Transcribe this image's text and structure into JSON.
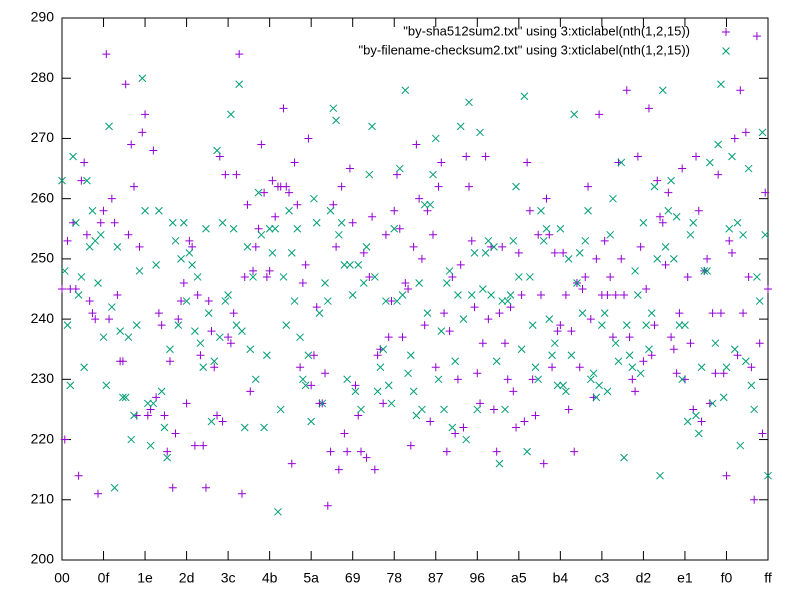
{
  "chart_data": {
    "type": "scatter",
    "xlim": [
      0,
      255
    ],
    "xticks": [
      {
        "value": 0,
        "label": "00"
      },
      {
        "value": 15,
        "label": "0f"
      },
      {
        "value": 30,
        "label": "1e"
      },
      {
        "value": 45,
        "label": "2d"
      },
      {
        "value": 60,
        "label": "3c"
      },
      {
        "value": 75,
        "label": "4b"
      },
      {
        "value": 90,
        "label": "5a"
      },
      {
        "value": 105,
        "label": "69"
      },
      {
        "value": 120,
        "label": "78"
      },
      {
        "value": 135,
        "label": "87"
      },
      {
        "value": 150,
        "label": "96"
      },
      {
        "value": 165,
        "label": "a5"
      },
      {
        "value": 180,
        "label": "b4"
      },
      {
        "value": 195,
        "label": "c3"
      },
      {
        "value": 210,
        "label": "d2"
      },
      {
        "value": 225,
        "label": "e1"
      },
      {
        "value": 240,
        "label": "f0"
      },
      {
        "value": 255,
        "label": "ff"
      }
    ],
    "ylim": [
      200,
      290
    ],
    "yticks": [
      200,
      210,
      220,
      230,
      240,
      250,
      260,
      270,
      280,
      290
    ],
    "legend": "top-right",
    "series": [
      {
        "name": "\"by-sha512sum2.txt\"         using 3:xticlabel(nth(1,2,15))",
        "color": "#9400d3",
        "marker": "plus",
        "values": [
          245,
          220,
          253,
          245,
          256,
          245,
          214,
          263,
          266,
          254,
          243,
          241,
          240,
          211,
          256,
          258,
          284,
          240,
          260,
          256,
          244,
          233,
          233,
          279,
          254,
          269,
          262,
          224,
          252,
          271,
          274,
          224,
          225,
          268,
          227,
          241,
          239,
          224,
          218,
          233,
          212,
          221,
          240,
          243,
          246,
          226,
          253,
          252,
          219,
          244,
          234,
          219,
          212,
          243,
          238,
          232,
          224,
          267,
          223,
          264,
          237,
          236,
          241,
          264,
          284,
          211,
          247,
          259,
          228,
          248,
          252,
          255,
          269,
          261,
          247,
          248,
          263,
          257,
          262,
          262,
          275,
          262,
          261,
          216,
          266,
          259,
          232,
          246,
          249,
          270,
          229,
          234,
          242,
          226,
          226,
          231,
          209,
          218,
          259,
          252,
          215,
          262,
          221,
          218,
          265,
          256,
          229,
          224,
          218,
          251,
          217,
          247,
          257,
          215,
          234,
          235,
          226,
          254,
          237,
          243,
          258,
          264,
          255,
          237,
          246,
          245,
          219,
          252,
          269,
          260,
          250,
          239,
          258,
          223,
          254,
          232,
          262,
          266,
          241,
          218,
          238,
          247,
          221,
          230,
          249,
          222,
          267,
          262,
          253,
          242,
          231,
          226,
          236,
          267,
          240,
          252,
          225,
          218,
          241,
          252,
          236,
          230,
          242,
          228,
          222,
          251,
          244,
          223,
          266,
          258,
          230,
          224,
          254,
          244,
          216,
          260,
          254,
          232,
          251,
          238,
          239,
          251,
          244,
          225,
          238,
          218,
          246,
          232,
          245,
          247,
          262,
          240,
          227,
          250,
          274,
          244,
          253,
          244,
          247,
          237,
          244,
          266,
          250,
          244,
          278,
          237,
          230,
          228,
          267,
          252,
          233,
          245,
          275,
          234,
          239,
          263,
          257,
          256,
          249,
          261,
          237,
          235,
          231,
          241,
          265,
          230,
          247,
          236,
          225,
          267,
          258,
          223,
          248,
          250,
          226,
          241,
          231,
          264,
          241,
          231,
          214,
          253,
          251,
          270,
          234,
          278,
          241,
          271,
          247,
          232,
          210,
          287,
          236,
          221,
          261,
          245
        ]
      },
      {
        "name": "\"by-filename-checksum2.txt\" using 3:xticlabel(nth(1,2,15))",
        "color": "#009e73",
        "marker": "cross",
        "values": [
          263,
          248,
          239,
          229,
          267,
          256,
          244,
          247,
          232,
          263,
          252,
          258,
          253,
          246,
          254,
          237,
          229,
          272,
          242,
          212,
          252,
          238,
          227,
          227,
          237,
          220,
          224,
          239,
          248,
          280,
          258,
          226,
          219,
          226,
          249,
          258,
          228,
          222,
          217,
          235,
          256,
          253,
          239,
          250,
          256,
          243,
          251,
          249,
          238,
          247,
          236,
          232,
          255,
          241,
          223,
          233,
          268,
          237,
          256,
          243,
          244,
          274,
          255,
          239,
          279,
          238,
          222,
          252,
          235,
          247,
          230,
          261,
          254,
          222,
          234,
          255,
          251,
          255,
          208,
          225,
          247,
          239,
          258,
          251,
          243,
          255,
          237,
          230,
          229,
          234,
          223,
          260,
          256,
          241,
          226,
          246,
          243,
          258,
          275,
          273,
          254,
          256,
          249,
          230,
          249,
          244,
          228,
          249,
          225,
          246,
          252,
          264,
          272,
          247,
          228,
          232,
          235,
          243,
          229,
          226,
          255,
          243,
          265,
          244,
          278,
          231,
          234,
          228,
          224,
          246,
          225,
          259,
          241,
          259,
          264,
          270,
          230,
          238,
          225,
          246,
          248,
          222,
          233,
          244,
          272,
          240,
          220,
          276,
          244,
          251,
          225,
          271,
          245,
          251,
          253,
          244,
          252,
          233,
          216,
          243,
          225,
          243,
          244,
          253,
          262,
          247,
          235,
          277,
          218,
          247,
          239,
          232,
          230,
          258,
          253,
          255,
          240,
          234,
          236,
          229,
          255,
          229,
          228,
          250,
          234,
          274,
          246,
          251,
          241,
          253,
          258,
          230,
          231,
          227,
          229,
          239,
          241,
          228,
          254,
          260,
          236,
          233,
          266,
          217,
          239,
          234,
          232,
          248,
          244,
          231,
          256,
          239,
          235,
          241,
          262,
          250,
          214,
          278,
          252,
          258,
          263,
          250,
          257,
          239,
          230,
          239,
          223,
          254,
          256,
          224,
          221,
          232,
          248,
          248,
          266,
          226,
          236,
          269,
          279,
          227,
          232,
          255,
          267,
          235,
          256,
          219,
          254,
          233,
          265,
          229,
          225,
          247,
          243,
          271,
          254,
          214
        ]
      }
    ]
  }
}
